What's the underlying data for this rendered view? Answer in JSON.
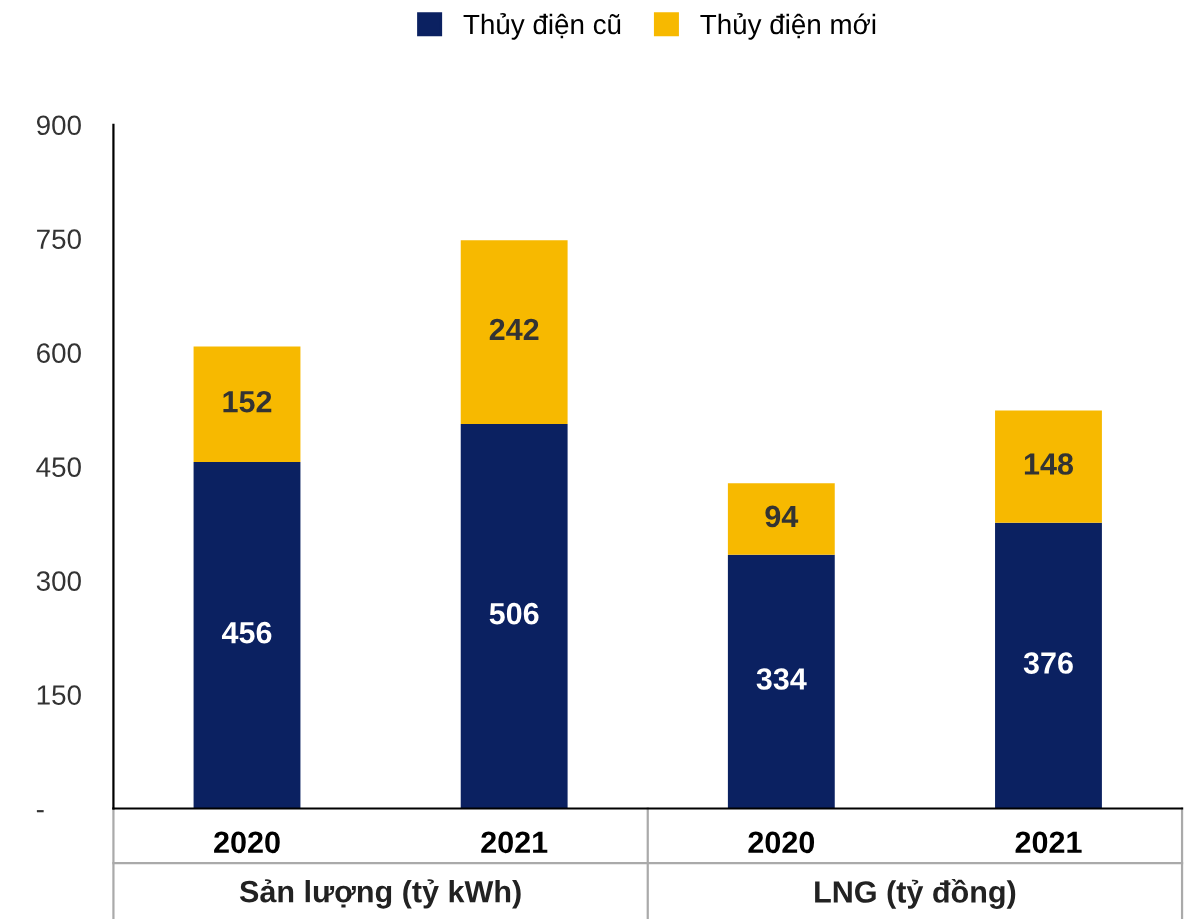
{
  "chart_data": {
    "type": "bar",
    "stacked": true,
    "categories": [
      "2020",
      "2021",
      "2020",
      "2021"
    ],
    "series": [
      {
        "name": "Thủy điện cũ",
        "color": "#0b2161",
        "values": [
          456,
          506,
          334,
          376
        ]
      },
      {
        "name": "Thủy điện mới",
        "color": "#f7b900",
        "values": [
          152,
          242,
          94,
          148
        ]
      }
    ],
    "ylim": [
      0,
      900
    ],
    "yticks": [
      {
        "value": 0,
        "label": "-"
      },
      150,
      300,
      450,
      600,
      750,
      900
    ],
    "data_labels": true,
    "legend": "top",
    "grid": false,
    "annotations": [
      "Sản lượng (tỷ kWh)",
      "LNG (tỷ đồng)"
    ]
  }
}
